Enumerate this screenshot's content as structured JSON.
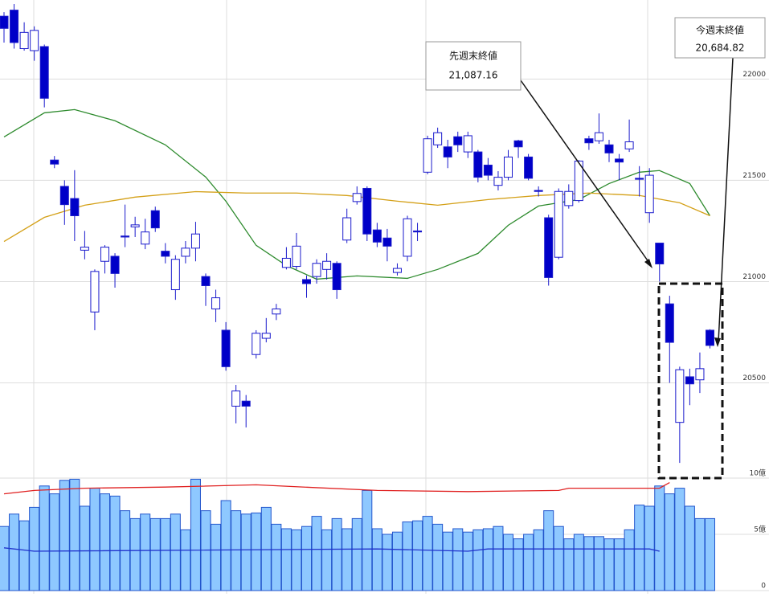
{
  "chart_data": {
    "type": "candlestick",
    "open": [
      22310,
      22340,
      22150,
      22140,
      22160,
      21600,
      21470,
      21410,
      21155,
      20850,
      21100,
      21125,
      21225,
      21270,
      21185,
      21350,
      21150,
      20960,
      21125,
      21165,
      21025,
      20865,
      20760,
      20385,
      20410,
      20640,
      20720,
      20840,
      21070,
      21075,
      21010,
      21025,
      21060,
      21090,
      21205,
      21395,
      21460,
      21255,
      21215,
      21045,
      21125,
      21250,
      21540,
      21675,
      21665,
      21715,
      21640,
      21640,
      21575,
      21475,
      21515,
      21695,
      21615,
      21450,
      21315,
      21120,
      21375,
      21400,
      21705,
      21695,
      21675,
      21605,
      21655,
      21510,
      21340,
      21190,
      20890,
      20305,
      20530,
      20515,
      20760
    ],
    "high": [
      22330,
      22370,
      22280,
      22260,
      22170,
      21620,
      21500,
      21550,
      21250,
      21060,
      21180,
      21140,
      21380,
      21320,
      21310,
      21370,
      21190,
      21130,
      21200,
      21295,
      21040,
      20960,
      20800,
      20490,
      20440,
      20760,
      20820,
      20890,
      21170,
      21240,
      21030,
      21110,
      21140,
      21100,
      21360,
      21470,
      21470,
      21290,
      21260,
      21090,
      21325,
      21290,
      21720,
      21760,
      21700,
      21740,
      21740,
      21650,
      21610,
      21545,
      21650,
      21700,
      21630,
      21470,
      21330,
      21460,
      21480,
      21600,
      21720,
      21830,
      21700,
      21630,
      21800,
      21570,
      21560,
      21190,
      20930,
      20580,
      20570,
      20650,
      20765
    ],
    "low": [
      22180,
      22150,
      22140,
      22090,
      21860,
      21560,
      21280,
      21200,
      21110,
      20760,
      21040,
      20970,
      21170,
      21220,
      21160,
      21245,
      21090,
      20910,
      21090,
      21100,
      20880,
      20800,
      20560,
      20300,
      20280,
      20620,
      20700,
      20810,
      21060,
      21060,
      20920,
      20990,
      21010,
      20915,
      21190,
      21380,
      21200,
      21170,
      21100,
      21030,
      21100,
      21200,
      21530,
      21660,
      21560,
      21640,
      21610,
      21490,
      21500,
      21450,
      21500,
      21610,
      21500,
      21420,
      20980,
      21110,
      21360,
      21390,
      21650,
      21680,
      21590,
      21500,
      21640,
      21420,
      21290,
      21000,
      20500,
      20105,
      20390,
      20450,
      20670
    ],
    "close": [
      22250,
      22180,
      22230,
      22240,
      21905,
      21580,
      21380,
      21325,
      21170,
      21050,
      21170,
      21040,
      21220,
      21280,
      21245,
      21265,
      21125,
      21110,
      21165,
      21235,
      20980,
      20920,
      20580,
      20460,
      20385,
      20745,
      20745,
      20865,
      21115,
      21175,
      20990,
      21090,
      21100,
      20960,
      21315,
      21435,
      21235,
      21195,
      21175,
      21065,
      21310,
      21245,
      21705,
      21735,
      21615,
      21675,
      21720,
      21515,
      21525,
      21515,
      21615,
      21665,
      21510,
      21445,
      21020,
      21445,
      21445,
      21595,
      21685,
      21735,
      21635,
      21590,
      21690,
      21505,
      21525,
      21087.16,
      20700,
      20565,
      20495,
      20570,
      20684.82
    ],
    "up_color": "#ffffff",
    "down_color": "#0000c8",
    "candle_stroke": "#1a1acc",
    "ylim": [
      20030,
      22390
    ],
    "yticks": [
      22000,
      21500,
      21000,
      20500
    ],
    "moving_averages": [
      {
        "color": "#2e8b2e",
        "x": [
          0,
          4,
          7,
          11,
          16,
          20,
          22,
          25,
          28,
          31,
          35,
          40,
          43,
          47,
          50,
          53,
          57,
          60,
          63,
          65,
          68,
          70
        ],
        "values": [
          21714,
          21833,
          21849,
          21794,
          21675,
          21516,
          21397,
          21179,
          21079,
          21012,
          21028,
          21016,
          21060,
          21139,
          21278,
          21373,
          21405,
          21484,
          21540,
          21548,
          21484,
          21325
        ]
      },
      {
        "color": "#d4a017",
        "x": [
          0,
          4,
          8,
          13,
          19,
          24,
          29,
          34,
          39,
          43,
          48,
          53,
          58,
          63,
          67,
          70
        ],
        "values": [
          21198,
          21317,
          21377,
          21417,
          21444,
          21437,
          21437,
          21425,
          21397,
          21377,
          21405,
          21425,
          21437,
          21425,
          21389,
          21325
        ]
      }
    ],
    "volume": {
      "values": [
        5.7,
        6.8,
        6.2,
        7.4,
        9.3,
        8.6,
        9.8,
        9.9,
        7.5,
        9.1,
        8.6,
        8.4,
        7.1,
        6.4,
        6.8,
        6.4,
        6.4,
        6.8,
        5.4,
        9.9,
        7.1,
        5.9,
        8.0,
        7.1,
        6.8,
        6.9,
        7.4,
        5.9,
        5.5,
        5.4,
        5.7,
        6.6,
        5.4,
        6.4,
        5.5,
        6.4,
        8.9,
        5.5,
        5.0,
        5.2,
        6.1,
        6.2,
        6.6,
        5.9,
        5.2,
        5.5,
        5.2,
        5.4,
        5.5,
        5.7,
        5.0,
        4.6,
        5.0,
        5.4,
        7.1,
        5.7,
        4.6,
        5.0,
        4.8,
        4.8,
        4.6,
        4.6,
        5.4,
        7.6,
        7.5,
        9.3,
        8.6,
        9.1,
        7.5,
        6.4,
        6.4
      ],
      "color": "#8ec8ff",
      "stroke": "#2255cc",
      "ylim": [
        0,
        10
      ],
      "yticks": [
        {
          "value": 10,
          "label": "10億"
        },
        {
          "value": 5,
          "label": "5億"
        },
        0
      ],
      "lines": [
        {
          "color": "#e02020",
          "x": [
            0,
            3,
            8,
            16,
            25,
            37,
            46,
            55,
            56,
            65,
            66
          ],
          "values": [
            8.6,
            8.9,
            9.1,
            9.2,
            9.4,
            8.9,
            8.8,
            8.9,
            9.1,
            9.1,
            9.6
          ]
        },
        {
          "color": "#2233cc",
          "x": [
            0,
            3,
            37,
            46,
            48,
            64,
            65
          ],
          "values": [
            3.8,
            3.5,
            3.7,
            3.5,
            3.7,
            3.7,
            3.5
          ]
        }
      ]
    },
    "annotations": [
      {
        "title": "先週末終値",
        "value": "21,087.16"
      },
      {
        "title": "今週末終値",
        "value": "20,684.82"
      }
    ]
  }
}
